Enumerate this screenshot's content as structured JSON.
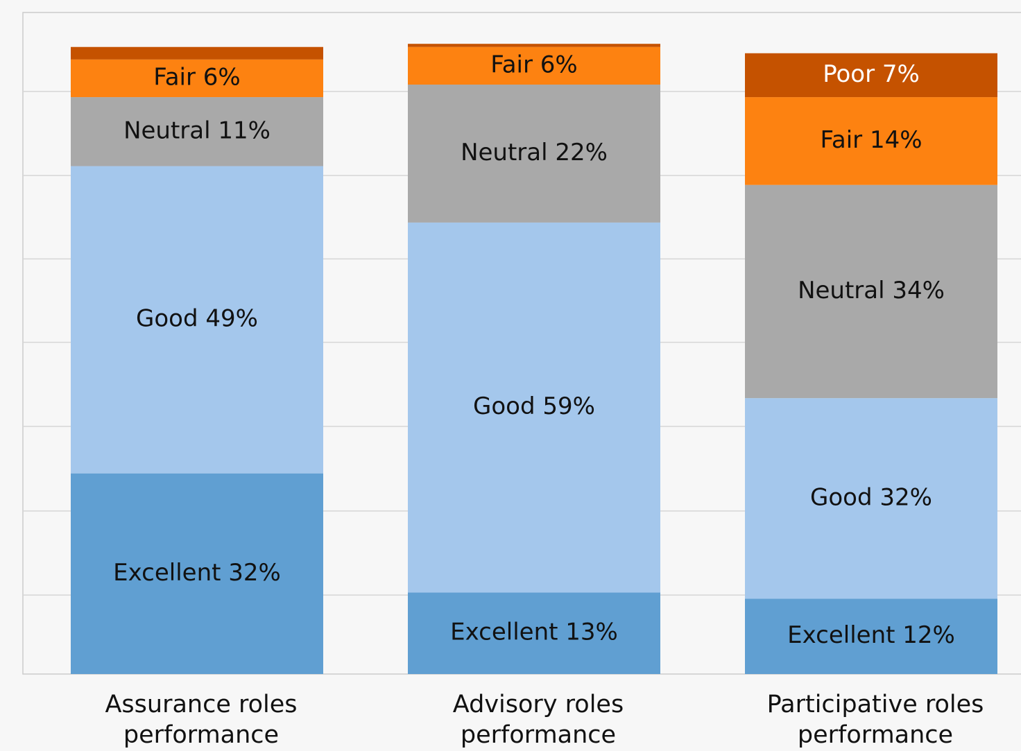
{
  "chart_data": {
    "type": "stacked_bar",
    "categories": [
      "Assurance roles performance",
      "Advisory roles performance",
      "Participative roles performance"
    ],
    "series": [
      {
        "name": "Excellent",
        "color": "#609fd2",
        "label_color": "#111111",
        "values": [
          32,
          13,
          12
        ],
        "value_labels": [
          "Excellent 32%",
          "Excellent 13%",
          "Excellent 12%"
        ]
      },
      {
        "name": "Good",
        "color": "#a4c7ec",
        "label_color": "#111111",
        "values": [
          49,
          59,
          32
        ],
        "value_labels": [
          "Good 49%",
          "Good 59%",
          "Good 32%"
        ]
      },
      {
        "name": "Neutral",
        "color": "#a9a9a9",
        "label_color": "#111111",
        "values": [
          11,
          22,
          34
        ],
        "value_labels": [
          "Neutral 11%",
          "Neutral 22%",
          "Neutral 34%"
        ]
      },
      {
        "name": "Fair",
        "color": "#fd8211",
        "label_color": "#111111",
        "values": [
          6,
          6,
          14
        ],
        "value_labels": [
          "Fair 6%",
          "Fair 6%",
          "Fair 14%"
        ]
      },
      {
        "name": "Poor",
        "color": "#c55200",
        "label_color": "#ffffff",
        "values": [
          2,
          0.5,
          7
        ],
        "value_labels": [
          null,
          null,
          "Poor 7%"
        ]
      }
    ],
    "ylim": [
      0,
      105.5
    ],
    "yticks": [
      12.6,
      26,
      39.5,
      52.9,
      66.2,
      79.5,
      92.9
    ],
    "grid": true
  }
}
